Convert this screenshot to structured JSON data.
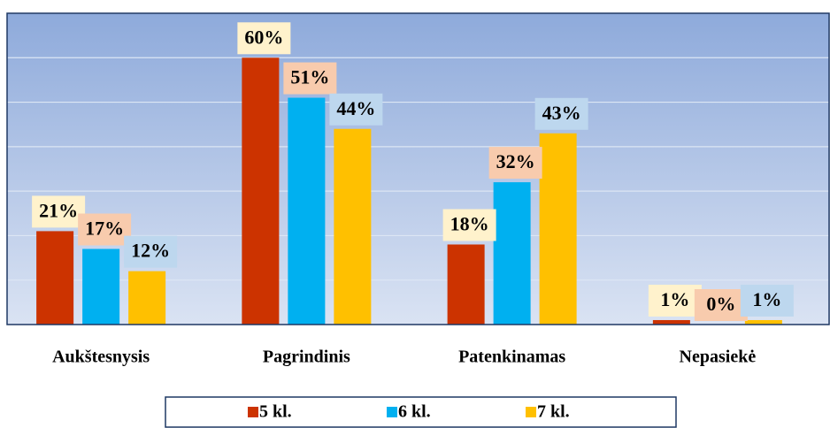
{
  "chart_data": {
    "type": "bar",
    "categories": [
      "Aukštesnysis",
      "Pagrindinis",
      "Patenkinamas",
      "Nepasiekė"
    ],
    "series": [
      {
        "name": "5 kl.",
        "color": "#cc3300",
        "label_background": "#fff2cc",
        "values": [
          21,
          60,
          18,
          1
        ],
        "value_labels": [
          "21%",
          "60%",
          "18%",
          "1%"
        ]
      },
      {
        "name": "6 kl.",
        "color": "#00b0f0",
        "label_background": "#f8cbad",
        "values": [
          17,
          51,
          32,
          0
        ],
        "value_labels": [
          "17%",
          "51%",
          "32%",
          "0%"
        ]
      },
      {
        "name": "7 kl.",
        "color": "#ffc000",
        "label_background": "#bdd7ee",
        "values": [
          12,
          44,
          43,
          1
        ],
        "value_labels": [
          "12%",
          "44%",
          "43%",
          "1%"
        ]
      }
    ],
    "ylim": [
      0,
      70
    ],
    "yticks": [
      0,
      10,
      20,
      30,
      40,
      50,
      60,
      70
    ],
    "grid": true,
    "legend": "bottom"
  }
}
